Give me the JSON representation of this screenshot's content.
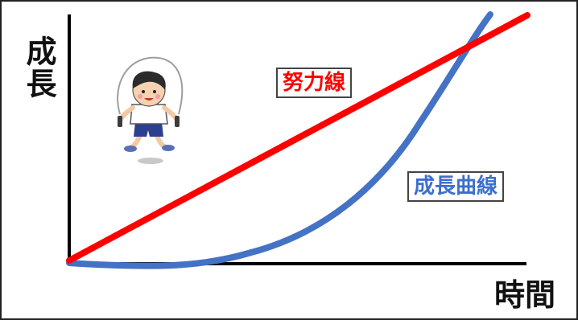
{
  "axes": {
    "y_label": "成長",
    "x_label": "時間"
  },
  "lines": {
    "effort": {
      "label": "努力線",
      "color": "#ff0000"
    },
    "growth": {
      "label": "成長曲線",
      "color": "#4472c4"
    }
  },
  "illustration": {
    "icon": "jump-rope-boy-icon"
  },
  "colors": {
    "axis": "#000000",
    "border": "#222222"
  }
}
